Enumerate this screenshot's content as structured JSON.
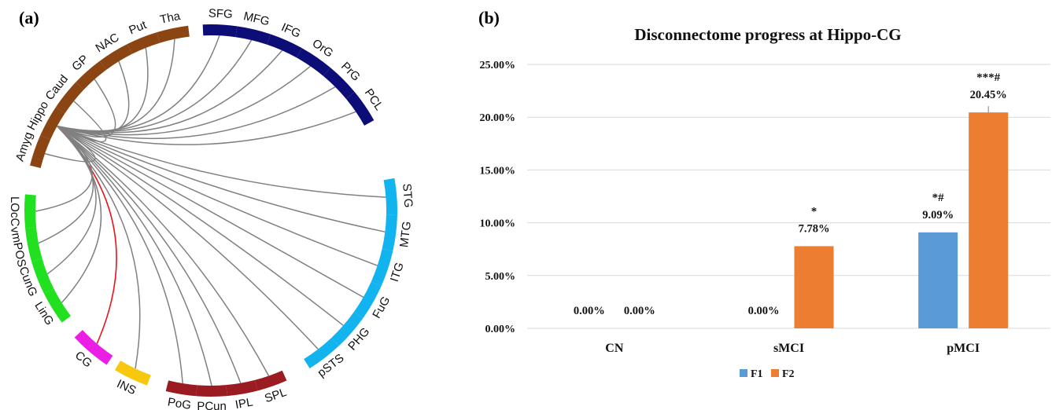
{
  "panel_a": {
    "label": "(a)",
    "center_node": "Hippo",
    "highlight_node": "CG",
    "colors": {
      "link": "#808080",
      "highlight_link": "#e8141e"
    },
    "groups": [
      {
        "color": "#8b4513",
        "nodes": [
          "Amyg",
          "Hippo",
          "Caud",
          "GP",
          "NAC",
          "Put",
          "Tha"
        ]
      },
      {
        "color": "#0d0d78",
        "nodes": [
          "SFG",
          "MFG",
          "IFG",
          "OrG",
          "PrG",
          "PCL"
        ]
      },
      {
        "color": "#12b4f0",
        "nodes": [
          "STG",
          "MTG",
          "ITG",
          "FuG",
          "PHG",
          "pSTS"
        ]
      },
      {
        "color": "#9b1b22",
        "nodes": [
          "SPL",
          "IPL",
          "PCun",
          "PoG"
        ]
      },
      {
        "color": "#f7c80f",
        "nodes": [
          "INS"
        ]
      },
      {
        "color": "#ea1ee4",
        "nodes": [
          "CG"
        ]
      },
      {
        "color": "#20e020",
        "nodes": [
          "LinG",
          "CunG",
          "vmPOS",
          "LOcC"
        ]
      }
    ]
  },
  "panel_b": {
    "label": "(b)",
    "chart_data": {
      "type": "bar",
      "title": "Disconnectome progress at Hippo-CG",
      "categories": [
        "CN",
        "sMCI",
        "pMCI"
      ],
      "series": [
        {
          "name": "F1",
          "color": "#5b9bd5",
          "values": [
            0.0,
            0.0,
            9.09
          ],
          "labels": [
            "0.00%",
            "0.00%",
            "9.09%"
          ],
          "annotations": [
            "",
            "",
            "*#"
          ]
        },
        {
          "name": "F2",
          "color": "#ed7d31",
          "values": [
            0.0,
            7.78,
            20.45
          ],
          "labels": [
            "0.00%",
            "7.78%",
            "20.45%"
          ],
          "annotations": [
            "",
            "*",
            "***#"
          ]
        }
      ],
      "ylim": [
        0,
        25
      ],
      "yticks": [
        0,
        5,
        10,
        15,
        20,
        25
      ],
      "ytick_labels": [
        "0.00%",
        "5.00%",
        "10.00%",
        "15.00%",
        "20.00%",
        "25.00%"
      ],
      "grid": true,
      "legend": "bottom-center",
      "xlabel": "",
      "ylabel": ""
    }
  }
}
